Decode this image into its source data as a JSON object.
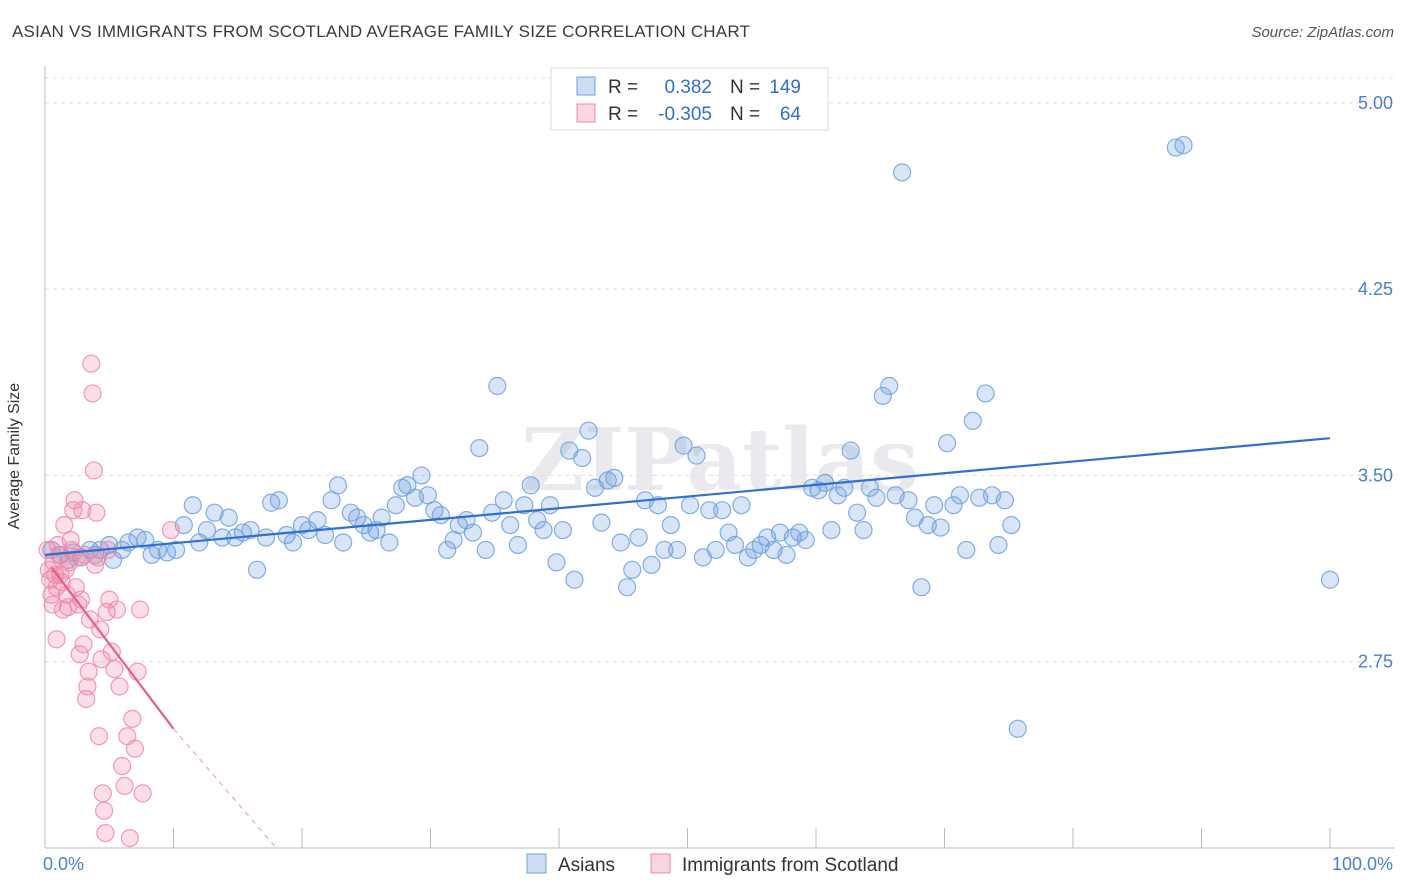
{
  "header": {
    "title": "ASIAN VS IMMIGRANTS FROM SCOTLAND AVERAGE FAMILY SIZE CORRELATION CHART",
    "source": "Source: ZipAtlas.com"
  },
  "watermark": "ZIPatlas",
  "chart_data": {
    "type": "scatter",
    "ylabel": "Average Family Size",
    "xlabel": "",
    "xlim": [
      0,
      100
    ],
    "ylim": [
      2.0,
      5.1
    ],
    "x_tick_labels": [
      "0.0%",
      "100.0%"
    ],
    "y_ticks": [
      2.75,
      3.5,
      4.25,
      5.0
    ],
    "y_tick_labels": [
      "2.75",
      "3.50",
      "4.25",
      "5.00"
    ],
    "grid": true,
    "legend_position": "top-center",
    "stats": [
      {
        "r_label": "R =",
        "r_value": "0.382",
        "n_label": "N =",
        "n_value": "149"
      },
      {
        "r_label": "R =",
        "r_value": "-0.305",
        "n_label": "N =",
        "n_value": "64"
      }
    ],
    "series": [
      {
        "name": "Asians",
        "color": "#6fa0e0",
        "line_color": "#2f6fd0",
        "trend": {
          "x": [
            0,
            100
          ],
          "y": [
            3.18,
            3.65
          ]
        },
        "points": [
          [
            0.5,
            3.2
          ],
          [
            1.2,
            3.18
          ],
          [
            1.8,
            3.16
          ],
          [
            2.2,
            3.19
          ],
          [
            2.8,
            3.17
          ],
          [
            3.5,
            3.2
          ],
          [
            3.9,
            3.18
          ],
          [
            4.3,
            3.2
          ],
          [
            5.0,
            3.22
          ],
          [
            5.3,
            3.16
          ],
          [
            6.0,
            3.2
          ],
          [
            6.5,
            3.23
          ],
          [
            7.2,
            3.25
          ],
          [
            7.8,
            3.24
          ],
          [
            8.3,
            3.18
          ],
          [
            8.8,
            3.2
          ],
          [
            9.5,
            3.19
          ],
          [
            10.2,
            3.2
          ],
          [
            10.8,
            3.3
          ],
          [
            11.5,
            3.38
          ],
          [
            12.0,
            3.23
          ],
          [
            12.6,
            3.28
          ],
          [
            13.2,
            3.35
          ],
          [
            13.8,
            3.25
          ],
          [
            14.3,
            3.33
          ],
          [
            14.8,
            3.25
          ],
          [
            15.4,
            3.27
          ],
          [
            16.0,
            3.28
          ],
          [
            16.5,
            3.12
          ],
          [
            17.2,
            3.25
          ],
          [
            17.6,
            3.39
          ],
          [
            18.2,
            3.4
          ],
          [
            18.8,
            3.26
          ],
          [
            19.3,
            3.23
          ],
          [
            20.0,
            3.3
          ],
          [
            20.5,
            3.28
          ],
          [
            21.2,
            3.32
          ],
          [
            21.8,
            3.26
          ],
          [
            22.3,
            3.4
          ],
          [
            22.8,
            3.46
          ],
          [
            23.2,
            3.23
          ],
          [
            23.8,
            3.35
          ],
          [
            24.3,
            3.33
          ],
          [
            24.8,
            3.3
          ],
          [
            25.3,
            3.27
          ],
          [
            25.8,
            3.28
          ],
          [
            26.2,
            3.33
          ],
          [
            26.8,
            3.23
          ],
          [
            27.3,
            3.38
          ],
          [
            27.8,
            3.45
          ],
          [
            28.2,
            3.46
          ],
          [
            28.8,
            3.41
          ],
          [
            29.3,
            3.5
          ],
          [
            29.8,
            3.42
          ],
          [
            30.3,
            3.36
          ],
          [
            30.8,
            3.34
          ],
          [
            31.3,
            3.2
          ],
          [
            31.8,
            3.24
          ],
          [
            32.2,
            3.3
          ],
          [
            32.8,
            3.32
          ],
          [
            33.3,
            3.27
          ],
          [
            33.8,
            3.61
          ],
          [
            34.3,
            3.2
          ],
          [
            34.8,
            3.35
          ],
          [
            35.2,
            3.86
          ],
          [
            35.7,
            3.4
          ],
          [
            36.2,
            3.3
          ],
          [
            36.8,
            3.22
          ],
          [
            37.3,
            3.38
          ],
          [
            37.8,
            3.46
          ],
          [
            38.3,
            3.32
          ],
          [
            38.8,
            3.28
          ],
          [
            39.3,
            3.38
          ],
          [
            39.8,
            3.15
          ],
          [
            40.3,
            3.28
          ],
          [
            40.8,
            3.6
          ],
          [
            41.2,
            3.08
          ],
          [
            41.8,
            3.57
          ],
          [
            42.3,
            3.68
          ],
          [
            42.8,
            3.45
          ],
          [
            43.3,
            3.31
          ],
          [
            43.8,
            3.48
          ],
          [
            44.3,
            3.49
          ],
          [
            44.8,
            3.23
          ],
          [
            45.3,
            3.05
          ],
          [
            45.7,
            3.12
          ],
          [
            46.2,
            3.25
          ],
          [
            46.7,
            3.4
          ],
          [
            47.2,
            3.14
          ],
          [
            47.7,
            3.38
          ],
          [
            48.2,
            3.2
          ],
          [
            48.7,
            3.3
          ],
          [
            49.2,
            3.2
          ],
          [
            49.7,
            3.62
          ],
          [
            50.2,
            3.38
          ],
          [
            50.7,
            3.58
          ],
          [
            51.2,
            3.17
          ],
          [
            51.7,
            3.36
          ],
          [
            52.2,
            3.2
          ],
          [
            52.7,
            3.36
          ],
          [
            53.2,
            3.27
          ],
          [
            53.7,
            3.22
          ],
          [
            54.2,
            3.38
          ],
          [
            54.7,
            3.17
          ],
          [
            55.2,
            3.2
          ],
          [
            55.7,
            3.22
          ],
          [
            56.2,
            3.25
          ],
          [
            56.7,
            3.2
          ],
          [
            57.2,
            3.27
          ],
          [
            57.7,
            3.18
          ],
          [
            58.2,
            3.25
          ],
          [
            58.7,
            3.27
          ],
          [
            59.2,
            3.24
          ],
          [
            59.7,
            3.45
          ],
          [
            60.2,
            3.44
          ],
          [
            60.7,
            3.47
          ],
          [
            61.2,
            3.28
          ],
          [
            61.7,
            3.42
          ],
          [
            62.2,
            3.45
          ],
          [
            62.7,
            3.6
          ],
          [
            63.2,
            3.35
          ],
          [
            63.7,
            3.28
          ],
          [
            64.2,
            3.45
          ],
          [
            64.7,
            3.41
          ],
          [
            65.2,
            3.82
          ],
          [
            65.7,
            3.86
          ],
          [
            66.2,
            3.42
          ],
          [
            66.7,
            4.72
          ],
          [
            67.2,
            3.4
          ],
          [
            67.7,
            3.33
          ],
          [
            68.2,
            3.05
          ],
          [
            68.7,
            3.3
          ],
          [
            69.2,
            3.38
          ],
          [
            69.7,
            3.29
          ],
          [
            70.2,
            3.63
          ],
          [
            70.7,
            3.38
          ],
          [
            71.2,
            3.42
          ],
          [
            71.7,
            3.2
          ],
          [
            72.2,
            3.72
          ],
          [
            72.7,
            3.41
          ],
          [
            73.2,
            3.83
          ],
          [
            73.7,
            3.42
          ],
          [
            74.2,
            3.22
          ],
          [
            74.7,
            3.4
          ],
          [
            75.2,
            3.3
          ],
          [
            75.7,
            2.48
          ],
          [
            88.0,
            4.82
          ],
          [
            88.6,
            4.83
          ],
          [
            100.0,
            3.08
          ]
        ]
      },
      {
        "name": "Immigrants from Scotland",
        "color": "#f08aaa",
        "line_color": "#e0608a",
        "trend": {
          "x": [
            0.5,
            10.0
          ],
          "y": [
            3.13,
            2.48
          ]
        },
        "trend_ext": {
          "x": [
            10.0,
            18.0
          ],
          "y": [
            2.48,
            2.0
          ]
        },
        "points": [
          [
            0.2,
            3.2
          ],
          [
            0.3,
            3.12
          ],
          [
            0.4,
            3.08
          ],
          [
            0.5,
            3.02
          ],
          [
            0.6,
            2.98
          ],
          [
            0.7,
            3.15
          ],
          [
            0.8,
            3.1
          ],
          [
            0.9,
            3.05
          ],
          [
            1.0,
            3.22
          ],
          [
            1.1,
            3.18
          ],
          [
            1.2,
            3.1
          ],
          [
            1.3,
            3.07
          ],
          [
            1.4,
            2.96
          ],
          [
            1.5,
            3.3
          ],
          [
            1.6,
            3.12
          ],
          [
            1.7,
            3.02
          ],
          [
            1.8,
            2.97
          ],
          [
            1.9,
            3.15
          ],
          [
            2.0,
            3.24
          ],
          [
            2.1,
            3.2
          ],
          [
            2.2,
            3.36
          ],
          [
            2.3,
            3.4
          ],
          [
            2.4,
            3.05
          ],
          [
            2.5,
            3.17
          ],
          [
            2.6,
            2.98
          ],
          [
            2.7,
            2.78
          ],
          [
            2.8,
            3.0
          ],
          [
            2.9,
            3.36
          ],
          [
            3.0,
            2.82
          ],
          [
            3.1,
            3.18
          ],
          [
            3.2,
            2.6
          ],
          [
            3.3,
            2.65
          ],
          [
            3.4,
            2.71
          ],
          [
            3.5,
            2.92
          ],
          [
            3.6,
            3.95
          ],
          [
            3.7,
            3.83
          ],
          [
            3.8,
            3.52
          ],
          [
            3.9,
            3.14
          ],
          [
            4.0,
            3.35
          ],
          [
            4.1,
            3.17
          ],
          [
            4.2,
            2.45
          ],
          [
            4.3,
            2.88
          ],
          [
            4.4,
            2.76
          ],
          [
            4.5,
            2.22
          ],
          [
            4.6,
            2.15
          ],
          [
            4.7,
            2.06
          ],
          [
            4.8,
            2.95
          ],
          [
            4.9,
            3.2
          ],
          [
            5.0,
            3.0
          ],
          [
            5.2,
            2.79
          ],
          [
            5.4,
            2.72
          ],
          [
            5.6,
            2.96
          ],
          [
            5.8,
            2.65
          ],
          [
            6.0,
            2.33
          ],
          [
            6.2,
            2.25
          ],
          [
            6.4,
            2.45
          ],
          [
            6.6,
            2.04
          ],
          [
            6.8,
            2.52
          ],
          [
            7.0,
            2.4
          ],
          [
            7.2,
            2.71
          ],
          [
            7.4,
            2.96
          ],
          [
            7.6,
            2.22
          ],
          [
            9.8,
            3.28
          ],
          [
            0.9,
            2.84
          ]
        ]
      }
    ]
  },
  "legend": {
    "items": [
      "Asians",
      "Immigrants from Scotland"
    ]
  }
}
